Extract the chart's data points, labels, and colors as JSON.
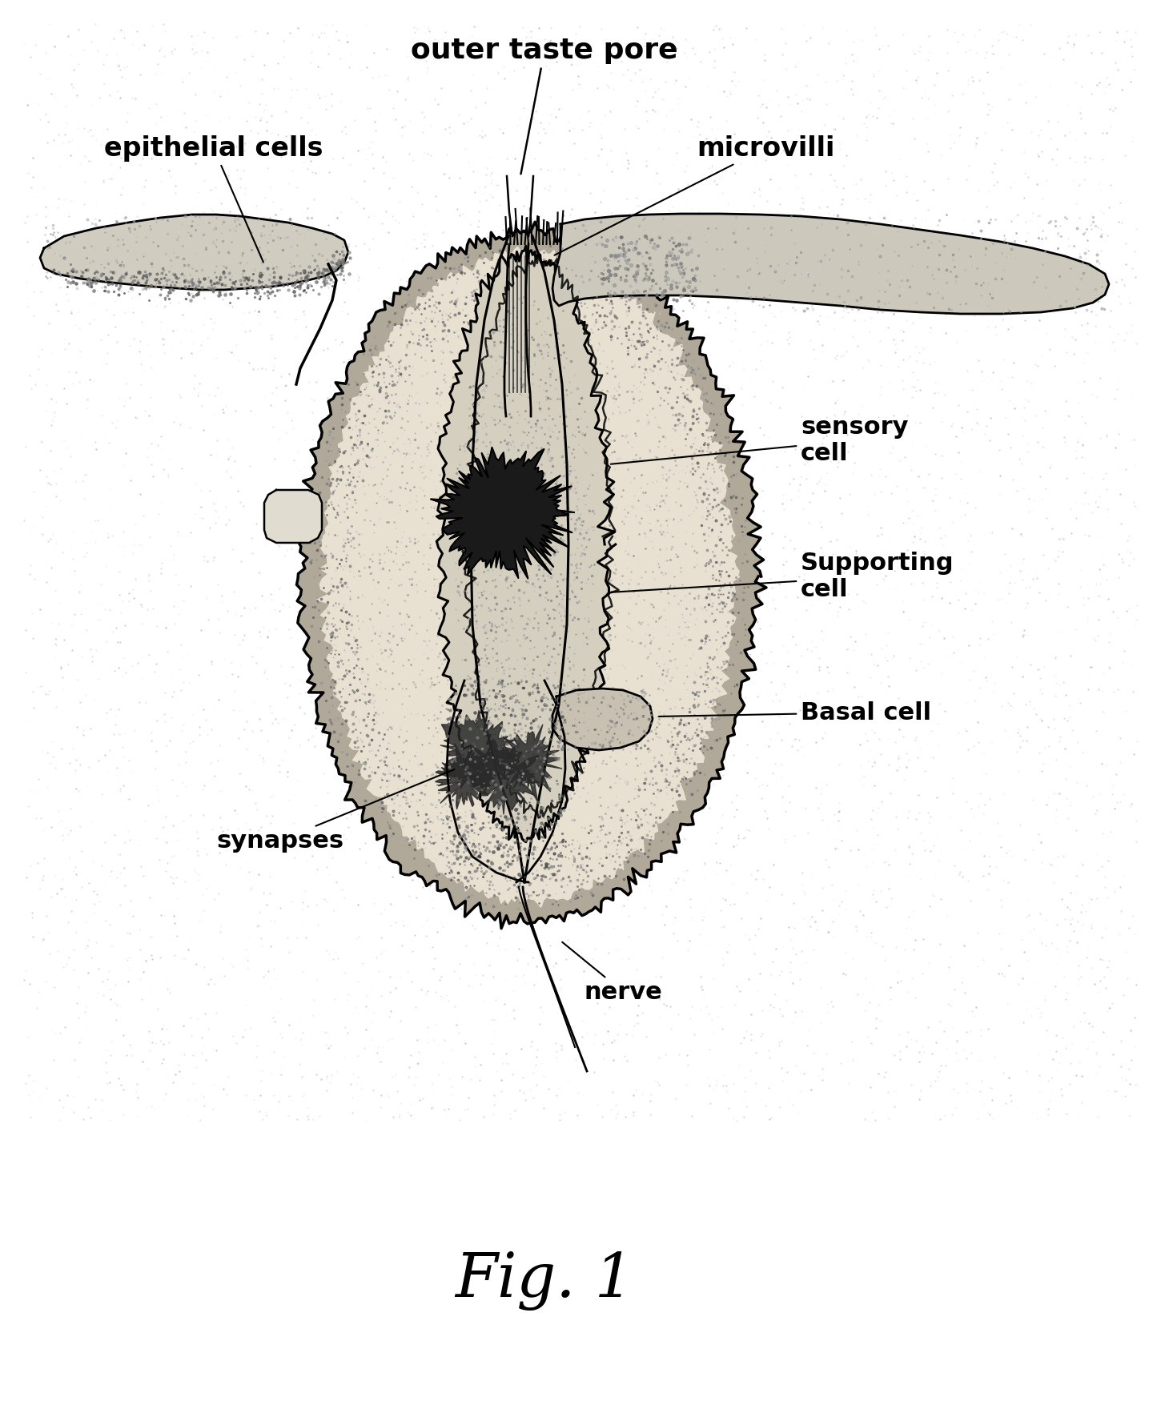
{
  "bg_color": "#f0ede6",
  "white_bg": "#ffffff",
  "fig_label": "Fig. 1",
  "labels": {
    "outer_taste_pore": "outer taste pore",
    "epithelial_cells": "epithelial cells",
    "microvilli": "microvilli",
    "sensory_cell": "sensory\ncell",
    "supporting_cell": "Supporting\ncell",
    "basal_cell": "Basal cell",
    "synapses": "synapses",
    "nerve": "nerve"
  },
  "figsize": [
    14.5,
    17.5
  ],
  "dpi": 100,
  "xlim": [
    0,
    1450
  ],
  "ylim": [
    0,
    1750
  ]
}
